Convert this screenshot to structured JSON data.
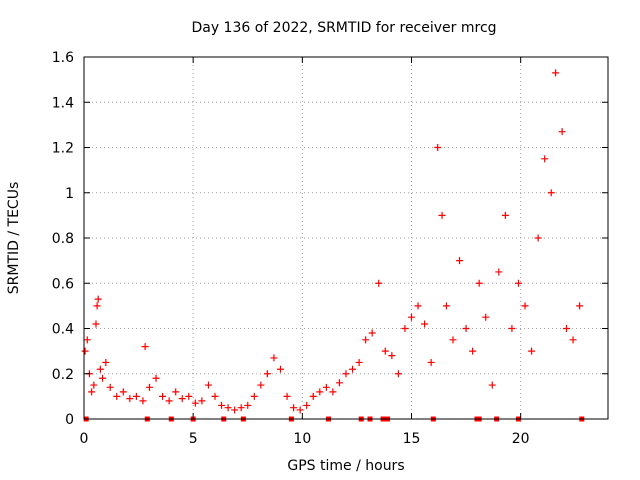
{
  "chart_data": {
    "type": "scatter",
    "title": "Day 136 of 2022, SRMTID for receiver mrcg",
    "xlabel": "GPS time / hours",
    "ylabel": "SRMTID / TECUs",
    "xlim": [
      0,
      24
    ],
    "ylim": [
      0,
      1.6
    ],
    "x_ticks": [
      0,
      5,
      10,
      15,
      20
    ],
    "x_tick_labels": [
      "0",
      "5",
      "10",
      "15",
      "20"
    ],
    "y_ticks": [
      0,
      0.2,
      0.4,
      0.6,
      0.8,
      1.0,
      1.2,
      1.4,
      1.6
    ],
    "y_tick_labels": [
      "0",
      "0.2",
      "0.4",
      "0.6",
      "0.8",
      "1",
      "1.2",
      "1.4",
      "1.6"
    ],
    "grid": true,
    "marker": "plus",
    "color": "#ff0000",
    "series": [
      {
        "name": "SRMTID",
        "points": [
          [
            0.05,
            0.3
          ],
          [
            0.15,
            0.35
          ],
          [
            0.25,
            0.2
          ],
          [
            0.35,
            0.12
          ],
          [
            0.45,
            0.15
          ],
          [
            0.55,
            0.42
          ],
          [
            0.6,
            0.5
          ],
          [
            0.65,
            0.53
          ],
          [
            0.75,
            0.22
          ],
          [
            0.85,
            0.18
          ],
          [
            1.0,
            0.25
          ],
          [
            1.2,
            0.14
          ],
          [
            1.5,
            0.1
          ],
          [
            1.8,
            0.12
          ],
          [
            2.1,
            0.09
          ],
          [
            2.4,
            0.1
          ],
          [
            2.7,
            0.08
          ],
          [
            2.8,
            0.32
          ],
          [
            3.0,
            0.14
          ],
          [
            3.3,
            0.18
          ],
          [
            3.6,
            0.1
          ],
          [
            3.9,
            0.08
          ],
          [
            4.2,
            0.12
          ],
          [
            4.5,
            0.09
          ],
          [
            4.8,
            0.1
          ],
          [
            5.1,
            0.07
          ],
          [
            5.4,
            0.08
          ],
          [
            5.7,
            0.15
          ],
          [
            6.0,
            0.1
          ],
          [
            6.3,
            0.06
          ],
          [
            6.6,
            0.05
          ],
          [
            6.9,
            0.04
          ],
          [
            7.2,
            0.05
          ],
          [
            7.5,
            0.06
          ],
          [
            7.8,
            0.1
          ],
          [
            8.1,
            0.15
          ],
          [
            8.4,
            0.2
          ],
          [
            8.7,
            0.27
          ],
          [
            9.0,
            0.22
          ],
          [
            9.3,
            0.1
          ],
          [
            9.6,
            0.05
          ],
          [
            9.9,
            0.04
          ],
          [
            10.2,
            0.06
          ],
          [
            10.5,
            0.1
          ],
          [
            10.8,
            0.12
          ],
          [
            11.1,
            0.14
          ],
          [
            11.4,
            0.12
          ],
          [
            11.7,
            0.16
          ],
          [
            12.0,
            0.2
          ],
          [
            12.3,
            0.22
          ],
          [
            12.6,
            0.25
          ],
          [
            12.9,
            0.35
          ],
          [
            13.2,
            0.38
          ],
          [
            13.5,
            0.6
          ],
          [
            13.8,
            0.3
          ],
          [
            14.1,
            0.28
          ],
          [
            14.4,
            0.2
          ],
          [
            14.7,
            0.4
          ],
          [
            15.0,
            0.45
          ],
          [
            15.3,
            0.5
          ],
          [
            15.6,
            0.42
          ],
          [
            15.9,
            0.25
          ],
          [
            16.2,
            1.2
          ],
          [
            16.4,
            0.9
          ],
          [
            16.6,
            0.5
          ],
          [
            16.9,
            0.35
          ],
          [
            17.2,
            0.7
          ],
          [
            17.5,
            0.4
          ],
          [
            17.8,
            0.3
          ],
          [
            18.1,
            0.6
          ],
          [
            18.4,
            0.45
          ],
          [
            18.7,
            0.15
          ],
          [
            19.0,
            0.65
          ],
          [
            19.3,
            0.9
          ],
          [
            19.6,
            0.4
          ],
          [
            19.9,
            0.6
          ],
          [
            20.2,
            0.5
          ],
          [
            20.5,
            0.3
          ],
          [
            20.8,
            0.8
          ],
          [
            21.1,
            1.15
          ],
          [
            21.4,
            1.0
          ],
          [
            21.6,
            1.53
          ],
          [
            21.9,
            1.27
          ],
          [
            22.1,
            0.4
          ],
          [
            22.4,
            0.35
          ],
          [
            22.7,
            0.5
          ]
        ]
      }
    ],
    "baseline_markers_x": [
      0.1,
      2.9,
      4.0,
      5.0,
      6.4,
      7.3,
      9.5,
      11.2,
      12.7,
      13.1,
      13.7,
      13.9,
      16.0,
      18.0,
      18.1,
      18.9,
      19.9,
      22.8
    ]
  }
}
